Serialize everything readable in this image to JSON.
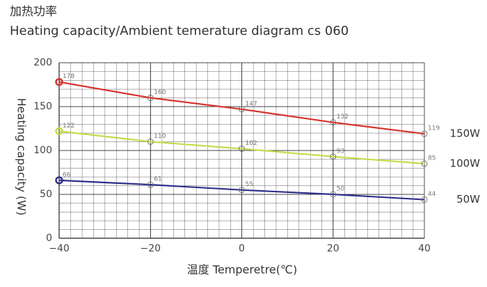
{
  "chart_data": {
    "type": "line",
    "title": "加热功率",
    "subtitle": "Heating capacity/Ambient temerature diagram cs 060",
    "x_label": "温度 Temperetre(℃)",
    "y_label": "Heating capacity (W)",
    "x": [
      -40,
      -20,
      0,
      20,
      40
    ],
    "xlim": [
      -40,
      40
    ],
    "xticks": [
      {
        "value": -40,
        "label": "−40"
      },
      {
        "value": -20,
        "label": "−20"
      },
      0,
      20,
      40
    ],
    "ylim": [
      0,
      200
    ],
    "yticks": [
      0,
      50,
      100,
      150,
      200
    ],
    "grid": true,
    "series": [
      {
        "name": "150W",
        "color": "#d8322c",
        "values": [
          178,
          160,
          147,
          132,
          119
        ]
      },
      {
        "name": "100W",
        "color": "#c6da4c",
        "values": [
          122,
          110,
          102,
          93,
          85
        ]
      },
      {
        "name": "50W",
        "color": "#2f2f8c",
        "values": [
          66,
          61,
          55,
          50,
          44
        ]
      }
    ]
  }
}
